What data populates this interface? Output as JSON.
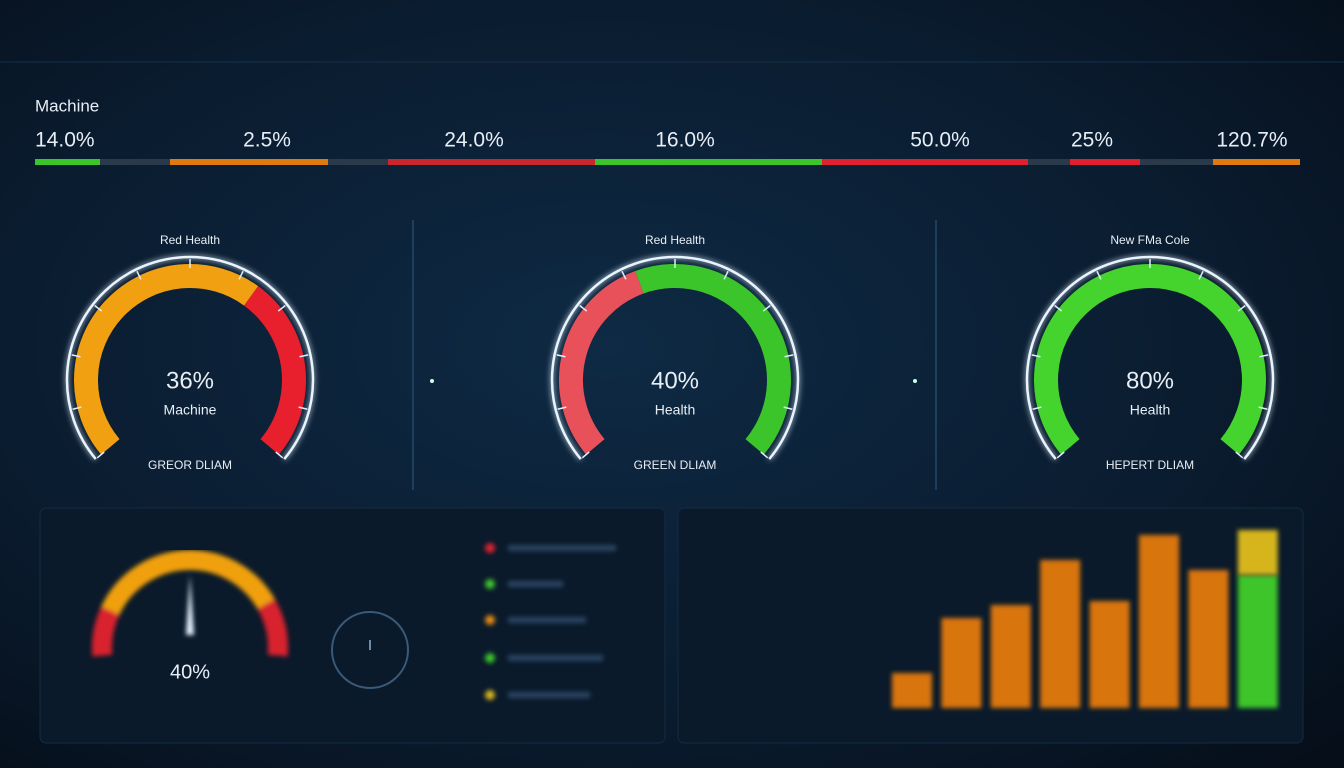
{
  "header": {
    "title": "Machine"
  },
  "metrics": [
    "14.0%",
    "2.5%",
    "24.0%",
    "16.0%",
    "50.0%",
    "25%",
    "120.7%"
  ],
  "gauges": [
    {
      "title": "Red Health",
      "value": "36%",
      "label": "Machine",
      "footer": "GREOR DLIAM"
    },
    {
      "title": "Red Health",
      "value": "40%",
      "label": "Health",
      "footer": "GREEN DLIAM"
    },
    {
      "title": "New FMa Cole",
      "value": "80%",
      "label": "Health",
      "footer": "HEPERT DLIAM"
    }
  ],
  "mini_gauge": {
    "value": "40%"
  },
  "bar_chart": {
    "ylim": [
      0,
      200
    ],
    "series": [
      {
        "color": "#d9740f",
        "values": [
          35,
          90,
          103,
          148,
          107,
          173,
          138,
          null
        ]
      },
      {
        "color": "#3cc52a",
        "values": [
          null,
          null,
          null,
          null,
          null,
          null,
          null,
          133
        ]
      },
      {
        "color": "#d6b51e",
        "values": [
          null,
          null,
          null,
          null,
          null,
          null,
          null,
          45
        ]
      }
    ]
  }
}
